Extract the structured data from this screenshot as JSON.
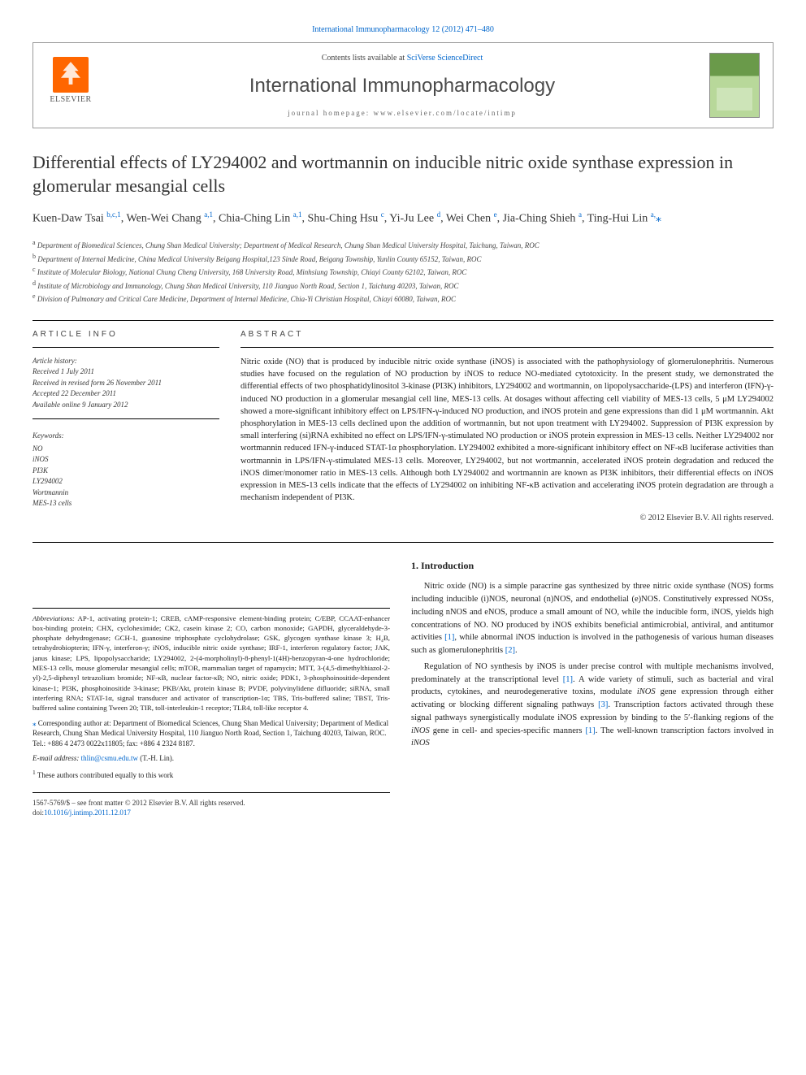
{
  "top_link": {
    "journal": "International Immunopharmacology",
    "citation": "12 (2012) 471–480"
  },
  "header": {
    "contents_prefix": "Contents lists available at ",
    "contents_link": "SciVerse ScienceDirect",
    "journal_name": "International Immunopharmacology",
    "homepage_prefix": "journal homepage: ",
    "homepage_url": "www.elsevier.com/locate/intimp",
    "publisher": "ELSEVIER"
  },
  "title": "Differential effects of LY294002 and wortmannin on inducible nitric oxide synthase expression in glomerular mesangial cells",
  "authors_html": "Kuen-Daw Tsai <sup>b,c,1</sup>, Wen-Wei Chang <sup>a,1</sup>, Chia-Ching Lin <sup>a,1</sup>, Shu-Ching Hsu <sup>c</sup>, Yi-Ju Lee <sup>d</sup>, Wei Chen <sup>e</sup>, Jia-Ching Shieh <sup>a</sup>, Ting-Hui Lin <sup>a,</sup><span class='star-sup'>⁎</span>",
  "affiliations": [
    {
      "sup": "a",
      "text": "Department of Biomedical Sciences, Chung Shan Medical University; Department of Medical Research, Chung Shan Medical University Hospital, Taichung, Taiwan, ROC"
    },
    {
      "sup": "b",
      "text": "Department of Internal Medicine, China Medical University Beigang Hospital,123 Sinde Road, Beigang Township, Yunlin County 65152, Taiwan, ROC"
    },
    {
      "sup": "c",
      "text": "Institute of Molecular Biology, National Chung Cheng University, 168 University Road, Minhsiung Township, Chiayi County 62102, Taiwan, ROC"
    },
    {
      "sup": "d",
      "text": "Institute of Microbiology and Immunology, Chung Shan Medical University, 110 Jianguo North Road, Section 1, Taichung 40203, Taiwan, ROC"
    },
    {
      "sup": "e",
      "text": "Division of Pulmonary and Critical Care Medicine, Department of Internal Medicine, Chia-Yi Christian Hospital, Chiayi 60080, Taiwan, ROC"
    }
  ],
  "article_info": {
    "heading": "ARTICLE INFO",
    "history_label": "Article history:",
    "history": [
      "Received 1 July 2011",
      "Received in revised form 26 November 2011",
      "Accepted 22 December 2011",
      "Available online 9 January 2012"
    ],
    "keywords_label": "Keywords:",
    "keywords": [
      "NO",
      "iNOS",
      "PI3K",
      "LY294002",
      "Wortmannin",
      "MES-13 cells"
    ]
  },
  "abstract": {
    "heading": "ABSTRACT",
    "text": "Nitric oxide (NO) that is produced by inducible nitric oxide synthase (iNOS) is associated with the pathophysiology of glomerulonephritis. Numerous studies have focused on the regulation of NO production by iNOS to reduce NO-mediated cytotoxicity. In the present study, we demonstrated the differential effects of two phosphatidylinositol 3-kinase (PI3K) inhibitors, LY294002 and wortmannin, on lipopolysaccharide-(LPS) and interferon (IFN)-γ-induced NO production in a glomerular mesangial cell line, MES-13 cells. At dosages without affecting cell viability of MES-13 cells, 5 μM LY294002 showed a more-significant inhibitory effect on LPS/IFN-γ-induced NO production, and iNOS protein and gene expressions than did 1 μM wortmannin. Akt phosphorylation in MES-13 cells declined upon the addition of wortmannin, but not upon treatment with LY294002. Suppression of PI3K expression by small interfering (si)RNA exhibited no effect on LPS/IFN-γ-stimulated NO production or iNOS protein expression in MES-13 cells. Neither LY294002 nor wortmannin reduced IFN-γ-induced STAT-1α phosphorylation. LY294002 exhibited a more-significant inhibitory effect on NF-κB luciferase activities than wortmannin in LPS/IFN-γ-stimulated MES-13 cells. Moreover, LY294002, but not wortmannin, accelerated iNOS protein degradation and reduced the iNOS dimer/monomer ratio in MES-13 cells. Although both LY294002 and wortmannin are known as PI3K inhibitors, their differential effects on iNOS expression in MES-13 cells indicate that the effects of LY294002 on inhibiting NF-κB activation and accelerating iNOS protein degradation are through a mechanism independent of PI3K.",
    "copyright": "© 2012 Elsevier B.V. All rights reserved."
  },
  "introduction": {
    "heading": "1. Introduction",
    "paras": [
      "Nitric oxide (NO) is a simple paracrine gas synthesized by three nitric oxide synthase (NOS) forms including inducible (i)NOS, neuronal (n)NOS, and endothelial (e)NOS. Constitutively expressed NOSs, including nNOS and eNOS, produce a small amount of NO, while the inducible form, iNOS, yields high concentrations of NO. NO produced by iNOS exhibits beneficial antimicrobial, antiviral, and antitumor activities [1], while abnormal iNOS induction is involved in the pathogenesis of various human diseases such as glomerulonephritis [2].",
      "Regulation of NO synthesis by iNOS is under precise control with multiple mechanisms involved, predominately at the transcriptional level [1]. A wide variety of stimuli, such as bacterial and viral products, cytokines, and neurodegenerative toxins, modulate iNOS gene expression through either activating or blocking different signaling pathways [3]. Transcription factors activated through these signal pathways synergistically modulate iNOS expression by binding to the 5′-flanking regions of the iNOS gene in cell- and species-specific manners [1]. The well-known transcription factors involved in iNOS"
    ]
  },
  "abbreviations": {
    "label": "Abbreviations:",
    "text": "AP-1, activating protein-1; CREB, cAMP-responsive element-binding protein; C/EBP, CCAAT-enhancer box-binding protein; CHX, cycloheximide; CK2, casein kinase 2; CO, carbon monoxide; GAPDH, glyceraldehyde-3-phosphate dehydrogenase; GCH-1, guanosine triphosphate cyclohydrolase; GSK, glycogen synthase kinase 3; H₄B, tetrahydrobiopterin; IFN-γ, interferon-γ; iNOS, inducible nitric oxide synthase; IRF-1, interferon regulatory factor; JAK, janus kinase; LPS, lipopolysaccharide; LY294002, 2-(4-morpholinyl)-8-phenyl-1(4H)-benzopyran-4-one hydrochloride; MES-13 cells, mouse glomerular mesangial cells; mTOR, mammalian target of rapamycin; MTT, 3-(4,5-dimethylthiazol-2-yl)-2,5-diphenyl tetrazolium bromide; NF-κB, nuclear factor-κB; NO, nitric oxide; PDK1, 3-phosphoinositide-dependent kinase-1; PI3K, phosphoinositide 3-kinase; PKB/Akt, protein kinase B; PVDF, polyvinylidene difluoride; siRNA, small interfering RNA; STAT-1α, signal transducer and activator of transcription-1α; TBS, Tris-buffered saline; TBST, Tris-buffered saline containing Tween 20; TIR, toll-interleukin-1 receptor; TLR4, toll-like receptor 4."
  },
  "correspondence": {
    "star": "⁎",
    "text": "Corresponding author at: Department of Biomedical Sciences, Chung Shan Medical University; Department of Medical Research, Chung Shan Medical University Hospital, 110 Jianguo North Road, Section 1, Taichung 40203, Taiwan, ROC. Tel.: +886 4 2473 0022x11805; fax: +886 4 2324 8187.",
    "email_label": "E-mail address:",
    "email": "thlin@csmu.edu.tw",
    "email_name": "(T.-H. Lin).",
    "footnote_sup": "1",
    "footnote": "These authors contributed equally to this work"
  },
  "footer": {
    "issn": "1567-5769/$ – see front matter © 2012 Elsevier B.V. All rights reserved.",
    "doi_label": "doi:",
    "doi": "10.1016/j.intimp.2011.12.017"
  },
  "colors": {
    "link": "#0066cc",
    "orange": "#ff6600",
    "text": "#222222",
    "rule": "#000000"
  }
}
